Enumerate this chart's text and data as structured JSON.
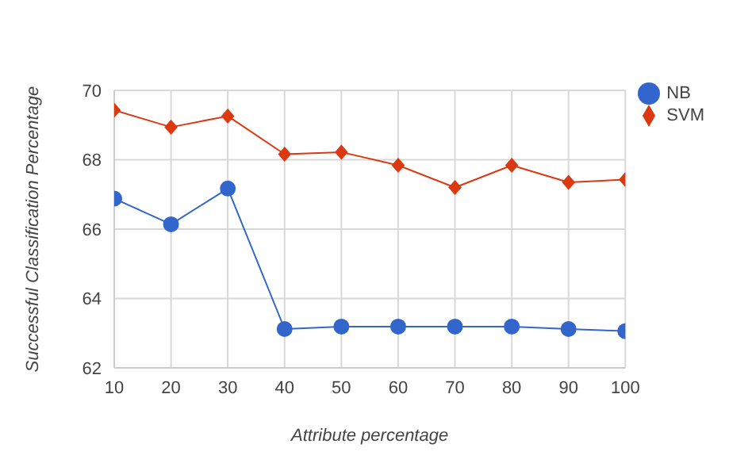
{
  "chart_data": {
    "type": "line",
    "xlabel": "Attribute percentage",
    "ylabel": "Successful Classification Percentage",
    "x": [
      10,
      20,
      30,
      40,
      50,
      60,
      70,
      80,
      90,
      100
    ],
    "series": [
      {
        "name": "NB",
        "color": "#3366cc",
        "marker": "circle",
        "values": [
          66.88,
          66.14,
          67.17,
          63.12,
          63.19,
          63.19,
          63.19,
          63.19,
          63.12,
          63.06
        ]
      },
      {
        "name": "SVM",
        "color": "#dc3912",
        "marker": "diamond",
        "values": [
          69.43,
          68.94,
          69.26,
          68.16,
          68.22,
          67.84,
          67.2,
          67.84,
          67.35,
          67.43
        ]
      }
    ],
    "xlim": [
      10,
      100
    ],
    "xticks": [
      10,
      20,
      30,
      40,
      50,
      60,
      70,
      80,
      90,
      100
    ],
    "ylim": [
      62,
      70
    ],
    "yticks": [
      62,
      64,
      66,
      68,
      70
    ],
    "grid": true,
    "legend": "top right",
    "line_style": "solid"
  }
}
